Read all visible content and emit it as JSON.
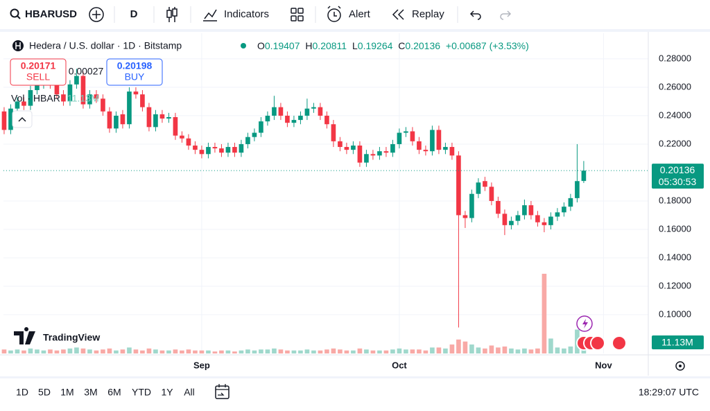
{
  "toolbar": {
    "symbol": "HBARUSD",
    "interval": "D",
    "indicators": "Indicators",
    "alert": "Alert",
    "replay": "Replay"
  },
  "legend": {
    "title": "Hedera / U.S. dollar · 1D · Bitstamp",
    "o": "O",
    "h": "H",
    "l": "L",
    "c": "C",
    "change": "+0.00687 (+3.53%)"
  },
  "trade": {
    "sell_price": "0.20171",
    "sell": "SELL",
    "spread": "0.00027",
    "buy_price": "0.20198",
    "buy": "BUY"
  },
  "volume_legend": {
    "title": "Vol · HBAR",
    "value": "11.13M"
  },
  "logo": "TradingView",
  "price_label": {
    "countdown": "05:30:53"
  },
  "bottom": {
    "ranges": [
      "1D",
      "5D",
      "1M",
      "3M",
      "6M",
      "YTD",
      "1Y",
      "All"
    ],
    "time": "18:29:07 UTC"
  },
  "chart_data": {
    "type": "candlestick",
    "up_color": "#089981",
    "down_color": "#f23645",
    "volume_up_color": "#9fd8cc",
    "volume_down_color": "#f8a9a6",
    "xlim": [
      -0.1,
      97.8
    ],
    "xticks": [
      {
        "value": 30,
        "label": "Sep"
      },
      {
        "value": 60,
        "label": "Oct"
      },
      {
        "value": 91,
        "label": "Nov"
      }
    ],
    "ylim": [
      0.0727,
      0.298
    ],
    "yticks": [
      {
        "value": 0.28,
        "label": "0.28000"
      },
      {
        "value": 0.26,
        "label": "0.26000"
      },
      {
        "value": 0.24,
        "label": "0.24000"
      },
      {
        "value": 0.22,
        "label": "0.22000"
      },
      {
        "value": 0.18,
        "label": "0.18000"
      },
      {
        "value": 0.16,
        "label": "0.16000"
      },
      {
        "value": 0.14,
        "label": "0.14000"
      },
      {
        "value": 0.12,
        "label": "0.12000"
      },
      {
        "value": 0.1,
        "label": "0.10000"
      }
    ],
    "grid": true,
    "open": [
      0.243,
      0.23,
      0.245,
      0.25,
      0.247,
      0.258,
      0.262,
      0.265,
      0.262,
      0.255,
      0.25,
      0.262,
      0.268,
      0.248,
      0.255,
      0.252,
      0.243,
      0.231,
      0.241,
      0.234,
      0.257,
      0.255,
      0.246,
      0.232,
      0.241,
      0.238,
      0.239,
      0.226,
      0.224,
      0.219,
      0.216,
      0.213,
      0.218,
      0.217,
      0.214,
      0.218,
      0.214,
      0.22,
      0.225,
      0.228,
      0.236,
      0.24,
      0.246,
      0.24,
      0.235,
      0.237,
      0.24,
      0.245,
      0.246,
      0.24,
      0.234,
      0.222,
      0.218,
      0.216,
      0.219,
      0.207,
      0.213,
      0.212,
      0.215,
      0.214,
      0.22,
      0.228,
      0.229,
      0.222,
      0.216,
      0.215,
      0.23,
      0.216,
      0.218,
      0.212,
      0.17,
      0.168,
      0.185,
      0.194,
      0.19,
      0.18,
      0.171,
      0.163,
      0.166,
      0.17,
      0.177,
      0.17,
      0.165,
      0.163,
      0.169,
      0.172,
      0.176,
      0.182,
      0.19407
    ],
    "high": [
      0.246,
      0.248,
      0.253,
      0.253,
      0.261,
      0.265,
      0.268,
      0.268,
      0.265,
      0.258,
      0.265,
      0.273,
      0.271,
      0.258,
      0.258,
      0.255,
      0.246,
      0.243,
      0.244,
      0.26,
      0.26,
      0.258,
      0.249,
      0.244,
      0.244,
      0.242,
      0.242,
      0.229,
      0.227,
      0.222,
      0.219,
      0.221,
      0.221,
      0.22,
      0.221,
      0.221,
      0.223,
      0.228,
      0.231,
      0.239,
      0.243,
      0.254,
      0.249,
      0.243,
      0.24,
      0.243,
      0.252,
      0.249,
      0.249,
      0.243,
      0.237,
      0.225,
      0.221,
      0.222,
      0.222,
      0.216,
      0.216,
      0.218,
      0.218,
      0.223,
      0.231,
      0.232,
      0.232,
      0.225,
      0.219,
      0.233,
      0.233,
      0.221,
      0.221,
      0.215,
      0.173,
      0.188,
      0.196,
      0.197,
      0.193,
      0.183,
      0.174,
      0.169,
      0.173,
      0.181,
      0.18,
      0.173,
      0.168,
      0.172,
      0.175,
      0.179,
      0.185,
      0.22,
      0.20811
    ],
    "low": [
      0.227,
      0.227,
      0.242,
      0.244,
      0.244,
      0.255,
      0.259,
      0.259,
      0.252,
      0.247,
      0.247,
      0.259,
      0.245,
      0.245,
      0.249,
      0.24,
      0.228,
      0.228,
      0.231,
      0.231,
      0.252,
      0.243,
      0.229,
      0.229,
      0.235,
      0.235,
      0.223,
      0.221,
      0.216,
      0.213,
      0.21,
      0.21,
      0.214,
      0.211,
      0.211,
      0.211,
      0.211,
      0.217,
      0.222,
      0.225,
      0.233,
      0.237,
      0.237,
      0.232,
      0.232,
      0.234,
      0.237,
      0.242,
      0.237,
      0.231,
      0.218,
      0.215,
      0.213,
      0.213,
      0.204,
      0.204,
      0.209,
      0.209,
      0.211,
      0.211,
      0.217,
      0.225,
      0.219,
      0.213,
      0.212,
      0.212,
      0.213,
      0.213,
      0.209,
      0.091,
      0.161,
      0.165,
      0.182,
      0.187,
      0.177,
      0.168,
      0.156,
      0.16,
      0.163,
      0.167,
      0.167,
      0.162,
      0.158,
      0.16,
      0.166,
      0.169,
      0.173,
      0.179,
      0.19264
    ],
    "close": [
      0.23,
      0.245,
      0.25,
      0.247,
      0.258,
      0.262,
      0.265,
      0.262,
      0.255,
      0.25,
      0.262,
      0.268,
      0.248,
      0.255,
      0.252,
      0.243,
      0.231,
      0.24,
      0.234,
      0.257,
      0.255,
      0.246,
      0.232,
      0.241,
      0.238,
      0.239,
      0.226,
      0.224,
      0.219,
      0.216,
      0.213,
      0.218,
      0.217,
      0.214,
      0.218,
      0.214,
      0.22,
      0.225,
      0.228,
      0.236,
      0.24,
      0.246,
      0.24,
      0.235,
      0.237,
      0.24,
      0.245,
      0.246,
      0.24,
      0.234,
      0.222,
      0.218,
      0.216,
      0.219,
      0.207,
      0.213,
      0.212,
      0.215,
      0.214,
      0.22,
      0.228,
      0.229,
      0.222,
      0.216,
      0.215,
      0.23,
      0.216,
      0.218,
      0.212,
      0.17,
      0.168,
      0.185,
      0.193,
      0.19,
      0.18,
      0.171,
      0.163,
      0.166,
      0.17,
      0.177,
      0.17,
      0.165,
      0.163,
      0.169,
      0.172,
      0.176,
      0.182,
      0.194,
      0.20136
    ],
    "volume": [
      4,
      3,
      4,
      3,
      5,
      4,
      3,
      4,
      3,
      4,
      5,
      6,
      5,
      4,
      3,
      4,
      5,
      3,
      4,
      6,
      4,
      3,
      5,
      4,
      3,
      3,
      4,
      3,
      4,
      3,
      3,
      3,
      2,
      3,
      3,
      2,
      3,
      4,
      3,
      4,
      4,
      5,
      4,
      3,
      3,
      3,
      4,
      3,
      3,
      4,
      5,
      4,
      3,
      3,
      5,
      4,
      3,
      3,
      3,
      4,
      5,
      4,
      4,
      4,
      3,
      6,
      6,
      5,
      9,
      14,
      12,
      9,
      6,
      5,
      8,
      6,
      7,
      5,
      4,
      5,
      4,
      5,
      80,
      15,
      6,
      5,
      7,
      24,
      11.13
    ]
  }
}
